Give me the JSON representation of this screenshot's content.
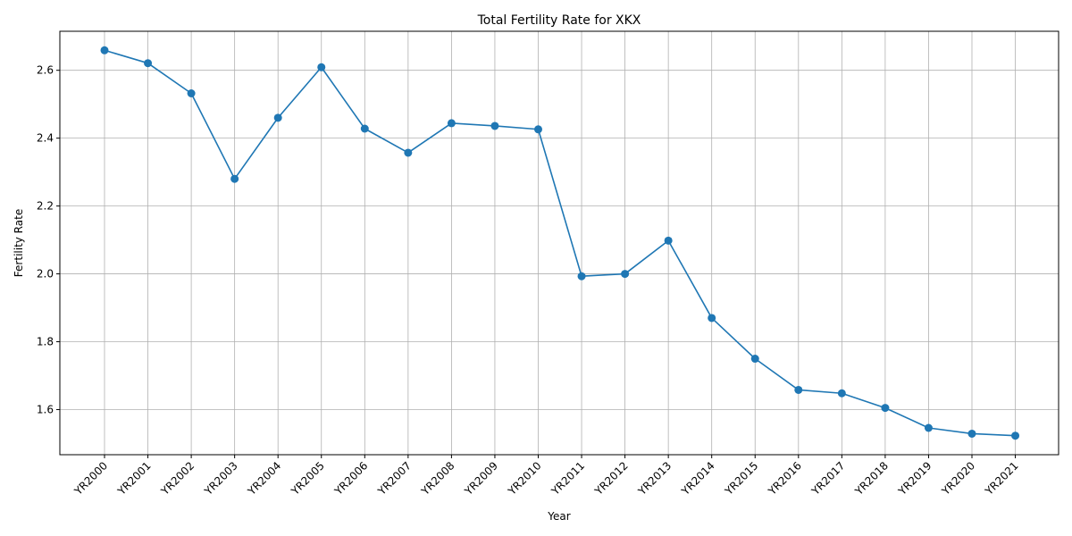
{
  "chart_data": {
    "type": "line",
    "title": "Total Fertility Rate for XKX",
    "xlabel": "Year",
    "ylabel": "Fertility Rate",
    "categories": [
      "YR2000",
      "YR2001",
      "YR2002",
      "YR2003",
      "YR2004",
      "YR2005",
      "YR2006",
      "YR2007",
      "YR2008",
      "YR2009",
      "YR2010",
      "YR2011",
      "YR2012",
      "YR2013",
      "YR2014",
      "YR2015",
      "YR2016",
      "YR2017",
      "YR2018",
      "YR2019",
      "YR2020",
      "YR2021"
    ],
    "series": [
      {
        "values": [
          2.659,
          2.621,
          2.532,
          2.28,
          2.46,
          2.609,
          2.428,
          2.357,
          2.444,
          2.436,
          2.426,
          1.993,
          2.0,
          2.098,
          1.87,
          1.75,
          1.658,
          1.648,
          1.605,
          1.546,
          1.529,
          1.523
        ],
        "color": "#1f77b4",
        "marker": "circle"
      }
    ],
    "ylim": [
      1.467,
      2.715
    ],
    "yticks": [
      1.6,
      1.8,
      2.0,
      2.2,
      2.4,
      2.6
    ],
    "ytick_labels": [
      "1.6",
      "1.8",
      "2.0",
      "2.2",
      "2.4",
      "2.6"
    ],
    "grid": true,
    "grid_color": "#b0b0b0",
    "xtick_rotation": "45 degrees"
  }
}
